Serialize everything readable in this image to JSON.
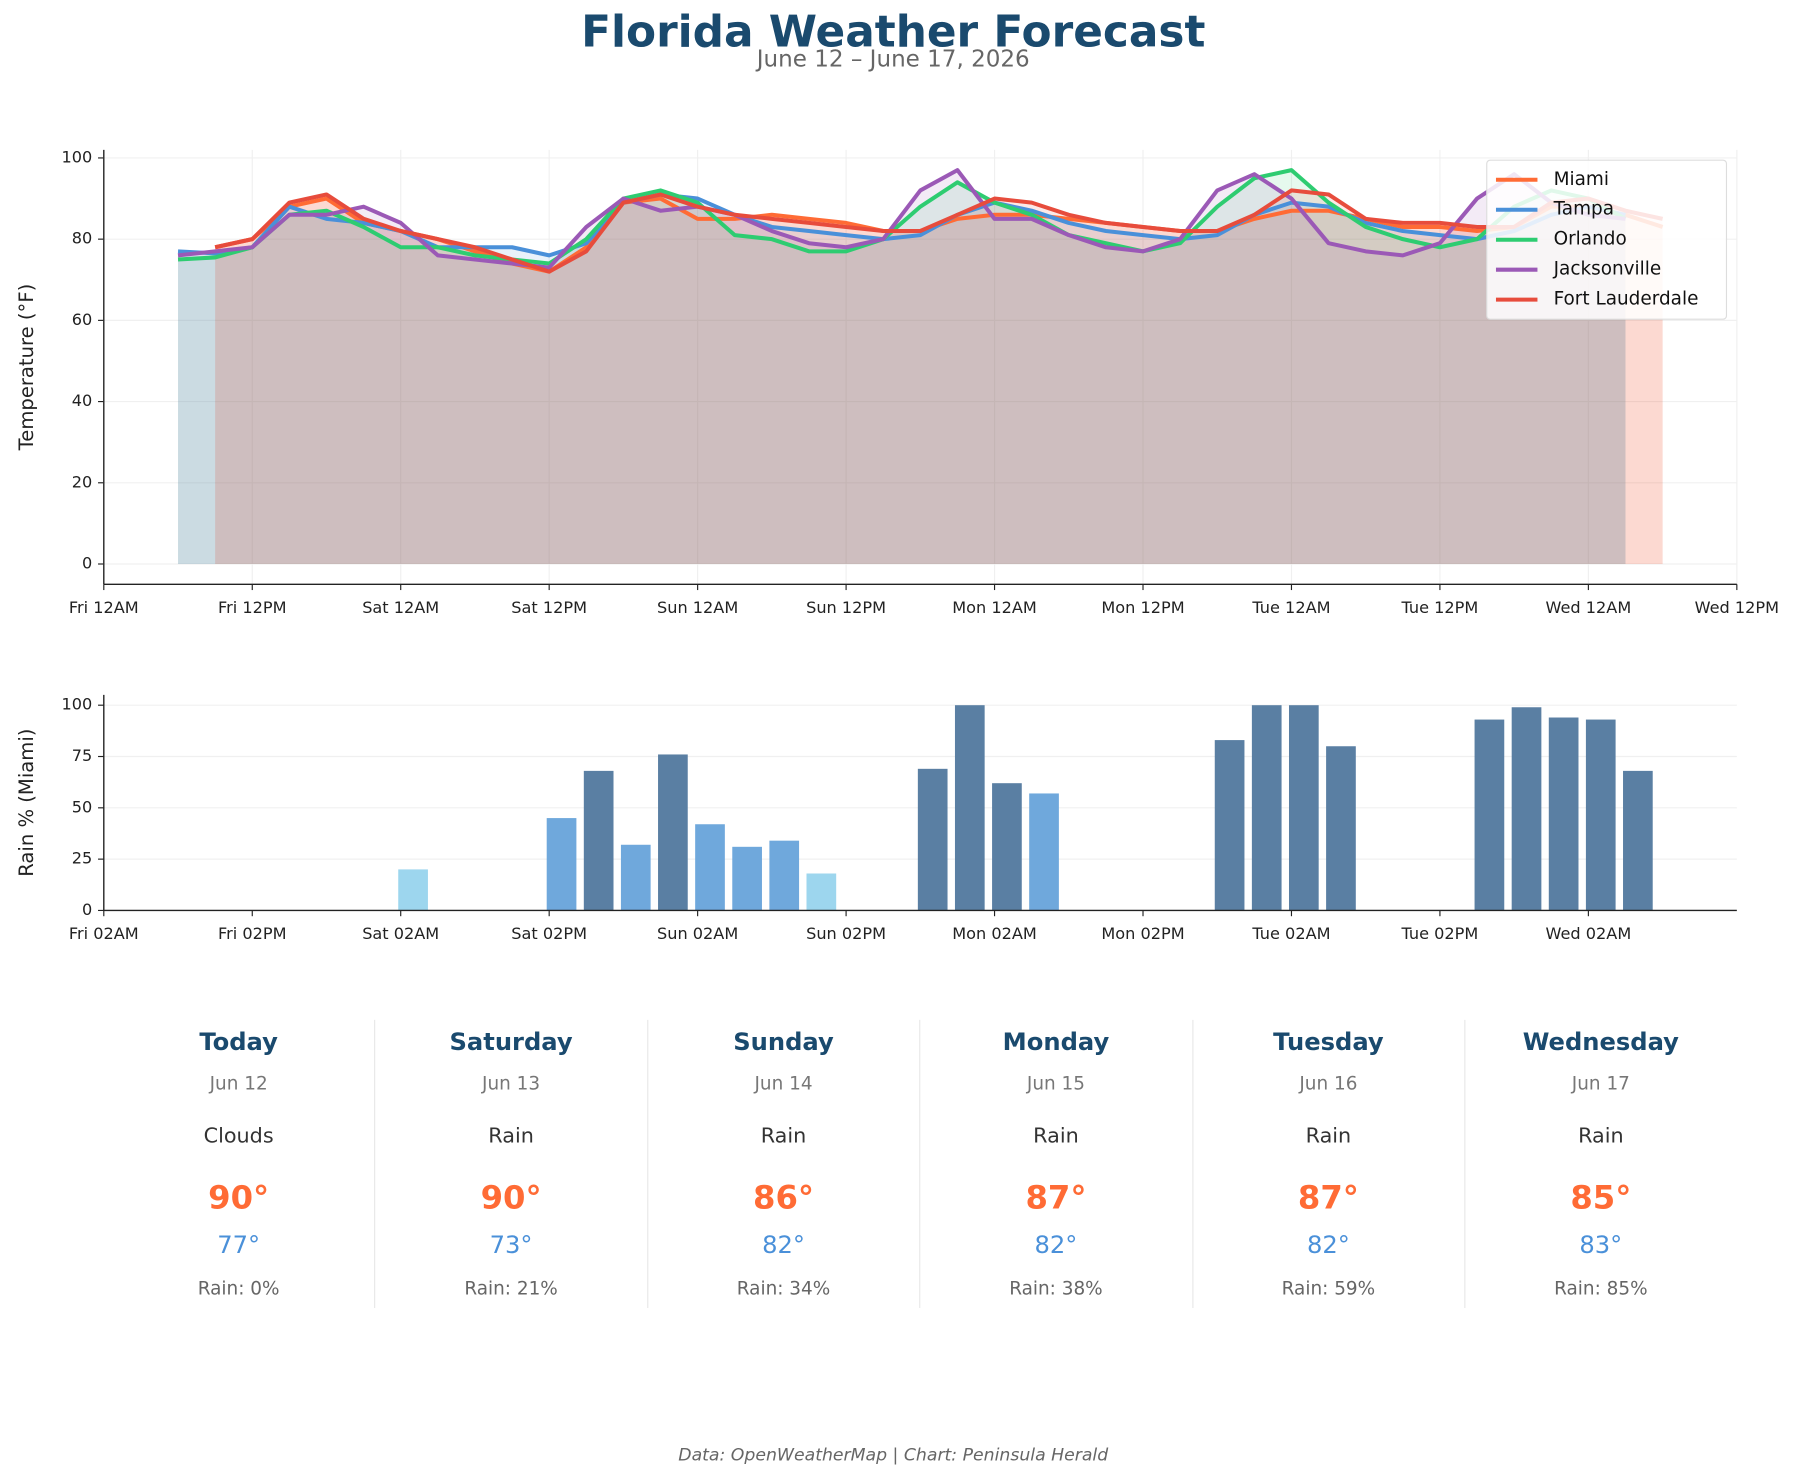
{
  "title": "Florida Weather Forecast",
  "subtitle": "June 12 – June 17, 2026",
  "footer": "Data: OpenWeatherMap | Chart: Peninsula Herald",
  "forecast_cards": [
    {
      "day": "Today",
      "date": "Jun 12",
      "condition": "Clouds",
      "high": "90°",
      "low": "77°",
      "rain": "Rain: 0%"
    },
    {
      "day": "Saturday",
      "date": "Jun 13",
      "condition": "Rain",
      "high": "90°",
      "low": "73°",
      "rain": "Rain: 21%"
    },
    {
      "day": "Sunday",
      "date": "Jun 14",
      "condition": "Rain",
      "high": "86°",
      "low": "82°",
      "rain": "Rain: 34%"
    },
    {
      "day": "Monday",
      "date": "Jun 15",
      "condition": "Rain",
      "high": "87°",
      "low": "82°",
      "rain": "Rain: 38%"
    },
    {
      "day": "Tuesday",
      "date": "Jun 16",
      "condition": "Rain",
      "high": "87°",
      "low": "82°",
      "rain": "Rain: 59%"
    },
    {
      "day": "Wednesday",
      "date": "Jun 17",
      "condition": "Rain",
      "high": "85°",
      "low": "83°",
      "rain": "Rain: 85%"
    }
  ],
  "chart_data": [
    {
      "type": "line",
      "y_label": "Temperature (°F)",
      "grid": true,
      "legend": "upper right",
      "area_fill": true,
      "x": [
        6,
        9,
        12,
        15,
        18,
        21,
        24,
        27,
        30,
        33,
        36,
        39,
        42,
        45,
        48,
        51,
        54,
        57,
        60,
        63,
        66,
        69,
        72,
        75,
        78,
        81,
        84,
        87,
        90,
        93,
        96,
        99,
        102,
        105,
        108,
        111,
        114,
        117,
        120,
        123,
        126
      ],
      "xlim": [
        0,
        132
      ],
      "xticks": [
        {
          "value": 0,
          "label": "Fri 12AM"
        },
        {
          "value": 12,
          "label": "Fri 12PM"
        },
        {
          "value": 24,
          "label": "Sat 12AM"
        },
        {
          "value": 36,
          "label": "Sat 12PM"
        },
        {
          "value": 48,
          "label": "Sun 12AM"
        },
        {
          "value": 60,
          "label": "Sun 12PM"
        },
        {
          "value": 72,
          "label": "Mon 12AM"
        },
        {
          "value": 84,
          "label": "Mon 12PM"
        },
        {
          "value": 96,
          "label": "Tue 12AM"
        },
        {
          "value": 108,
          "label": "Tue 12PM"
        },
        {
          "value": 120,
          "label": "Wed 12AM"
        },
        {
          "value": 132,
          "label": "Wed 12PM"
        }
      ],
      "ylim": [
        -5,
        102
      ],
      "yticks": [
        0,
        20,
        40,
        60,
        80,
        100
      ],
      "series": [
        {
          "name": "Miami",
          "color": "#ff6b35",
          "values": [
            null,
            78,
            80,
            88,
            90,
            84,
            82,
            80,
            77,
            74,
            72,
            78,
            89,
            90,
            85,
            85,
            86,
            85,
            84,
            82,
            82,
            85,
            86,
            86,
            85,
            84,
            83,
            82,
            82,
            85,
            87,
            87,
            85,
            83,
            83,
            82,
            83,
            88,
            88,
            86,
            83
          ]
        },
        {
          "name": "Tampa",
          "color": "#4a90d9",
          "values": [
            77,
            76.5,
            78,
            88,
            85,
            84,
            82,
            78,
            78,
            78,
            76,
            79,
            89,
            91,
            90,
            86,
            83,
            82,
            81,
            80,
            81,
            86,
            89,
            87,
            84,
            82,
            81,
            80,
            81,
            86,
            89,
            88,
            84,
            82,
            81,
            80,
            82,
            86,
            88,
            86,
            null
          ]
        },
        {
          "name": "Orlando",
          "color": "#2ecc71",
          "values": [
            75,
            75.5,
            78,
            86,
            87,
            83,
            78,
            78,
            76,
            75,
            74,
            80,
            90,
            92,
            89,
            81,
            80,
            77,
            77,
            80,
            88,
            94,
            89,
            86,
            81,
            79,
            77,
            79,
            88,
            95,
            97,
            89,
            83,
            80,
            78,
            80,
            88,
            92,
            90,
            85,
            null
          ]
        },
        {
          "name": "Jacksonville",
          "color": "#9b59b6",
          "values": [
            76,
            77,
            78,
            86,
            86,
            88,
            84,
            76,
            75,
            74,
            73,
            83,
            90,
            87,
            88,
            86,
            82,
            79,
            78,
            80,
            92,
            97,
            85,
            85,
            81,
            78,
            77,
            80,
            92,
            96,
            90,
            79,
            77,
            76,
            79,
            90,
            96,
            89,
            86,
            85,
            null
          ]
        },
        {
          "name": "Fort Lauderdale",
          "color": "#e74c3c",
          "values": [
            null,
            78,
            80,
            89,
            91,
            85,
            82,
            80,
            78,
            75,
            72,
            77,
            89,
            91,
            88,
            86,
            85,
            84,
            83,
            82,
            82,
            86,
            90,
            89,
            86,
            84,
            83,
            82,
            82,
            86,
            92,
            91,
            85,
            84,
            84,
            83,
            83,
            89,
            90,
            87,
            85
          ]
        }
      ]
    },
    {
      "type": "bar",
      "y_label": "Rain % (Miami)",
      "grid": "y",
      "x": [
        9,
        12,
        15,
        18,
        21,
        24,
        27,
        30,
        33,
        36,
        39,
        42,
        45,
        48,
        51,
        54,
        57,
        60,
        63,
        66,
        69,
        72,
        75,
        78,
        81,
        84,
        87,
        90,
        93,
        96,
        99,
        102,
        105,
        108,
        111,
        114,
        117,
        120,
        123,
        126
      ],
      "values": [
        0,
        0,
        0,
        0,
        0,
        0,
        20,
        0,
        0,
        0,
        45,
        68,
        32,
        76,
        42,
        31,
        34,
        18,
        0,
        0,
        69,
        100,
        62,
        57,
        0,
        0,
        0,
        0,
        83,
        100,
        100,
        80,
        0,
        0,
        0,
        93,
        99,
        94,
        93,
        68
      ],
      "color_bins": [
        {
          "below": 25,
          "color": "#9dd6ee"
        },
        {
          "below": 60,
          "color": "#6fa8dc"
        },
        {
          "below": 101,
          "color": "#5a7fa3"
        }
      ],
      "xlim": [
        2,
        134
      ],
      "xticks": [
        {
          "value": 2,
          "label": "Fri 02AM"
        },
        {
          "value": 14,
          "label": "Fri 02PM"
        },
        {
          "value": 26,
          "label": "Sat 02AM"
        },
        {
          "value": 38,
          "label": "Sat 02PM"
        },
        {
          "value": 50,
          "label": "Sun 02AM"
        },
        {
          "value": 62,
          "label": "Sun 02PM"
        },
        {
          "value": 74,
          "label": "Mon 02AM"
        },
        {
          "value": 86,
          "label": "Mon 02PM"
        },
        {
          "value": 98,
          "label": "Tue 02AM"
        },
        {
          "value": 110,
          "label": "Tue 02PM"
        },
        {
          "value": 122,
          "label": "Wed 02AM"
        }
      ],
      "ylim": [
        0,
        105
      ],
      "yticks": [
        0,
        25,
        50,
        75,
        100
      ]
    }
  ]
}
